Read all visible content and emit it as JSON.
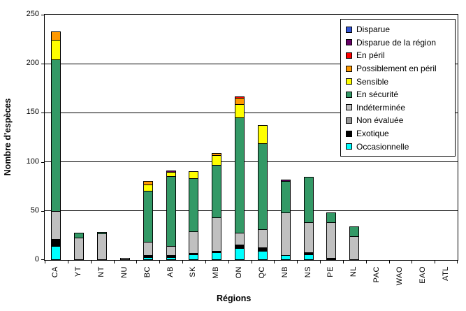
{
  "chart_data": {
    "type": "stacked-bar",
    "ylabel": "Nombre d'espèces",
    "xlabel": "Régions",
    "ylim": [
      0,
      250
    ],
    "yticks": [
      0,
      50,
      100,
      150,
      200,
      250
    ],
    "grid": true,
    "legend_position": "top-right-inside",
    "categories": [
      "CA",
      "YT",
      "NT",
      "NU",
      "BC",
      "AB",
      "SK",
      "MB",
      "ON",
      "QC",
      "NB",
      "NS",
      "PE",
      "NL",
      "PAC",
      "WAO",
      "EAO",
      "ATL"
    ],
    "series": [
      {
        "name": "Disparue",
        "color": "#3355D4",
        "values": [
          0,
          0,
          0,
          0,
          0,
          0,
          0,
          0,
          0,
          0,
          0,
          0,
          0,
          0,
          0,
          0,
          0,
          0
        ]
      },
      {
        "name": "Disparue de la région",
        "color": "#660066",
        "values": [
          0,
          0,
          0,
          0,
          0,
          2,
          0,
          0,
          0,
          0,
          2,
          0,
          0,
          0,
          0,
          0,
          0,
          0
        ]
      },
      {
        "name": "En péril",
        "color": "#FF0000",
        "values": [
          0,
          0,
          0,
          0,
          0,
          0,
          0,
          0,
          2,
          0,
          0,
          0,
          0,
          0,
          0,
          0,
          0,
          0
        ]
      },
      {
        "name": "Possiblement en péril",
        "color": "#FF9900",
        "values": [
          9,
          0,
          0,
          0,
          4,
          0,
          0,
          3,
          7,
          0,
          0,
          0,
          0,
          0,
          0,
          0,
          0,
          0
        ]
      },
      {
        "name": "Sensible",
        "color": "#FFFF00",
        "values": [
          21,
          0,
          0,
          0,
          7,
          5,
          8,
          11,
          14,
          19,
          0,
          0,
          0,
          0,
          0,
          0,
          0,
          0
        ]
      },
      {
        "name": "En sécurité",
        "color": "#339966",
        "values": [
          155,
          6,
          2,
          0,
          53,
          72,
          55,
          54,
          118,
          88,
          33,
          47,
          11,
          11,
          0,
          0,
          0,
          0
        ]
      },
      {
        "name": "Indéterminée",
        "color": "#C0C0C0",
        "values": [
          29,
          23,
          27,
          2,
          14,
          10,
          23,
          35,
          13,
          19,
          44,
          31,
          37,
          24,
          0,
          0,
          0,
          0
        ]
      },
      {
        "name": "Non évaluée",
        "color": "#969696",
        "values": [
          0,
          0,
          0,
          0,
          0,
          0,
          0,
          0,
          0,
          0,
          0,
          0,
          0,
          0,
          0,
          0,
          0,
          0
        ]
      },
      {
        "name": "Exotique",
        "color": "#000000",
        "values": [
          8,
          0,
          0,
          0,
          3,
          3,
          2,
          2,
          4,
          4,
          0,
          3,
          2,
          0,
          0,
          0,
          0,
          0
        ]
      },
      {
        "name": "Occasionnelle",
        "color": "#00FFFF",
        "values": [
          14,
          0,
          0,
          0,
          3,
          3,
          6,
          8,
          12,
          9,
          5,
          6,
          0,
          0,
          0,
          0,
          0,
          0
        ]
      }
    ]
  }
}
